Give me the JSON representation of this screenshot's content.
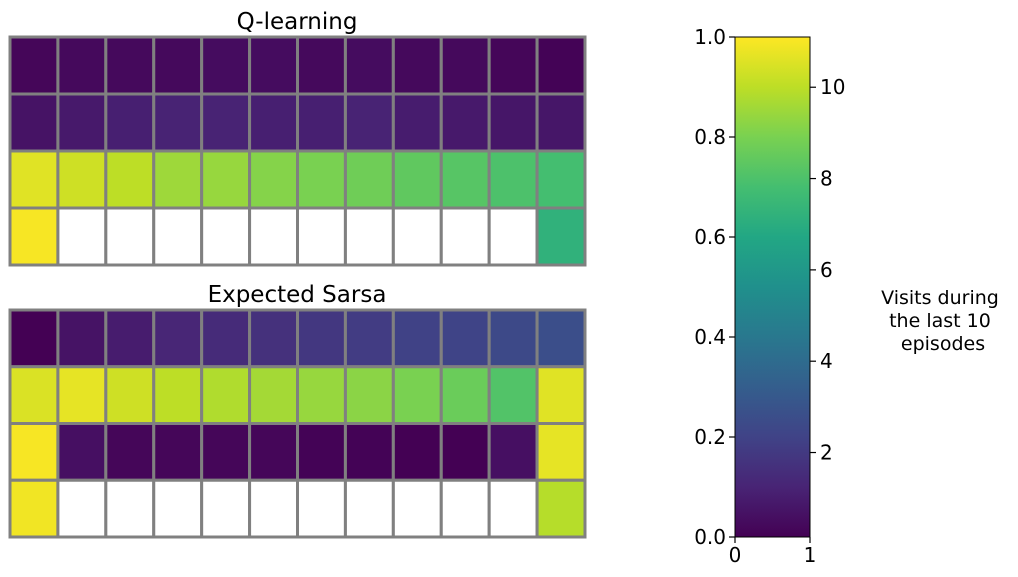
{
  "chart_data": [
    {
      "type": "heatmap",
      "title": "Q-learning",
      "rows": 4,
      "cols": 12,
      "values": [
        [
          0.3,
          0.4,
          0.4,
          0.4,
          0.5,
          0.5,
          0.4,
          0.5,
          0.4,
          0.4,
          0.3,
          0.2
        ],
        [
          0.7,
          0.9,
          1.1,
          1.2,
          1.2,
          1.1,
          1.1,
          1.2,
          1.0,
          0.9,
          0.8,
          0.8
        ],
        [
          10.6,
          10.3,
          10.0,
          9.5,
          9.4,
          9.1,
          8.9,
          8.7,
          8.4,
          8.2,
          8.0,
          7.8
        ],
        [
          11.0,
          null,
          null,
          null,
          null,
          null,
          null,
          null,
          null,
          null,
          null,
          7.2
        ]
      ]
    },
    {
      "type": "heatmap",
      "title": "Expected Sarsa",
      "rows": 4,
      "cols": 12,
      "values": [
        [
          0.1,
          0.7,
          1.0,
          1.3,
          1.5,
          1.7,
          1.9,
          2.1,
          2.3,
          2.4,
          2.6,
          2.8
        ],
        [
          10.5,
          10.7,
          10.3,
          10.0,
          9.8,
          9.6,
          9.4,
          9.2,
          8.9,
          8.6,
          8.1,
          10.6
        ],
        [
          11.0,
          0.6,
          0.3,
          0.3,
          0.3,
          0.3,
          0.2,
          0.2,
          0.1,
          0.1,
          0.6,
          10.7
        ],
        [
          10.9,
          null,
          null,
          null,
          null,
          null,
          null,
          null,
          null,
          null,
          null,
          9.9
        ]
      ]
    }
  ],
  "colorbar": {
    "label": "Visits during the last 10 episodes",
    "label_lines": [
      "Visits during",
      "the last 10",
      "episodes"
    ],
    "range": [
      0.15,
      11.1
    ],
    "ticks": [
      2,
      4,
      6,
      8,
      10
    ],
    "tick_labels": [
      "2",
      "4",
      "6",
      "8",
      "10"
    ],
    "left_ticks": [
      0.0,
      0.2,
      0.4,
      0.6,
      0.8,
      1.0
    ],
    "left_tick_labels": [
      "0.0",
      "0.2",
      "0.4",
      "0.6",
      "0.8",
      "1.0"
    ],
    "bottom_ticks": [
      0,
      1
    ],
    "bottom_tick_labels": [
      "0",
      "1"
    ],
    "colormap": "viridis"
  }
}
